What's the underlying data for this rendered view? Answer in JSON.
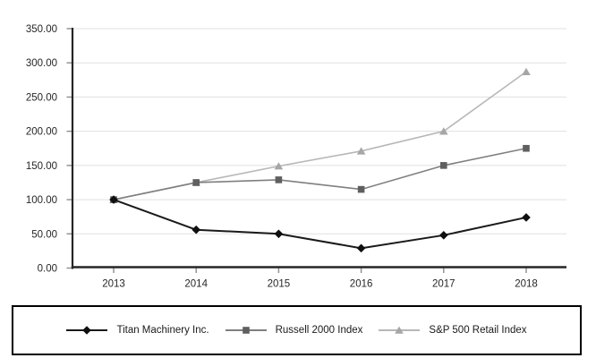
{
  "chart_data": {
    "type": "line",
    "title": "",
    "xlabel": "",
    "ylabel": "",
    "categories": [
      "2013",
      "2014",
      "2015",
      "2016",
      "2017",
      "2018"
    ],
    "series": [
      {
        "name": "Titan Machinery Inc.",
        "marker": "diamond",
        "line_color": "#1a1a1a",
        "marker_color": "#0f0f0f",
        "values": [
          100,
          56,
          50,
          29,
          48,
          74
        ]
      },
      {
        "name": "Russell 2000 Index",
        "marker": "square",
        "line_color": "#7f7f7f",
        "marker_color": "#5f5f5f",
        "values": [
          100,
          125,
          129,
          115,
          150,
          175
        ]
      },
      {
        "name": "S&P 500 Retail Index",
        "marker": "triangle",
        "line_color": "#b7b7b7",
        "marker_color": "#a6a6a6",
        "values": [
          100,
          125,
          149,
          171,
          200,
          287
        ]
      }
    ],
    "ylim": [
      0,
      350
    ],
    "y_ticks": [
      {
        "v": 350,
        "label": "350.00"
      },
      {
        "v": 300,
        "label": "300.00"
      },
      {
        "v": 250,
        "label": "250.00"
      },
      {
        "v": 200,
        "label": "200.00"
      },
      {
        "v": 150,
        "label": "150.00"
      },
      {
        "v": 100,
        "label": "100.00"
      },
      {
        "v": 50,
        "label": "50.00"
      },
      {
        "v": 0,
        "label": "0.00"
      }
    ],
    "grid": true,
    "legend_position": "bottom-box",
    "colors": {
      "axis": "#262626",
      "grid": "#e0e0e0",
      "tick": "#8c8c8c",
      "text": "#262626",
      "legend_border": "#000000"
    }
  }
}
